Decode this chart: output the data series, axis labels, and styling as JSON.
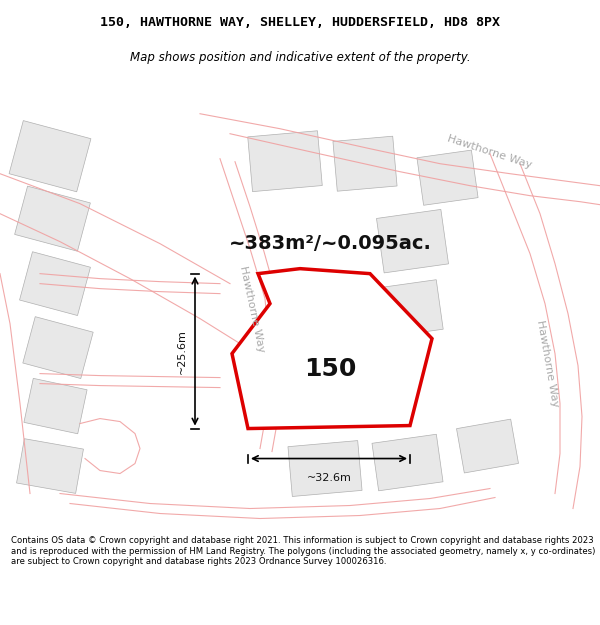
{
  "title_line1": "150, HAWTHORNE WAY, SHELLEY, HUDDERSFIELD, HD8 8PX",
  "title_line2": "Map shows position and indicative extent of the property.",
  "area_text": "~383m²/~0.095ac.",
  "property_number": "150",
  "dim_width": "~32.6m",
  "dim_height": "~25.6m",
  "street_label_top": "Hawthorne Way",
  "street_label_right": "Hawthorne Way",
  "street_label_mid": "Hawthorne Way",
  "footer_text": "Contains OS data © Crown copyright and database right 2021. This information is subject to Crown copyright and database rights 2023 and is reproduced with the permission of HM Land Registry. The polygons (including the associated geometry, namely x, y co-ordinates) are subject to Crown copyright and database rights 2023 Ordnance Survey 100026316.",
  "map_bg": "#ffffff",
  "building_fill": "#e8e8e8",
  "building_edge": "#b0b0b0",
  "road_color": "#f0a0a0",
  "plot_edge": "#dd0000",
  "plot_fill": "#ffffff",
  "street_label_color": "#aaaaaa",
  "title_fontsize": 9.5,
  "subtitle_fontsize": 8.5,
  "area_fontsize": 14,
  "num_fontsize": 18,
  "dim_fontsize": 8,
  "street_fontsize": 8
}
